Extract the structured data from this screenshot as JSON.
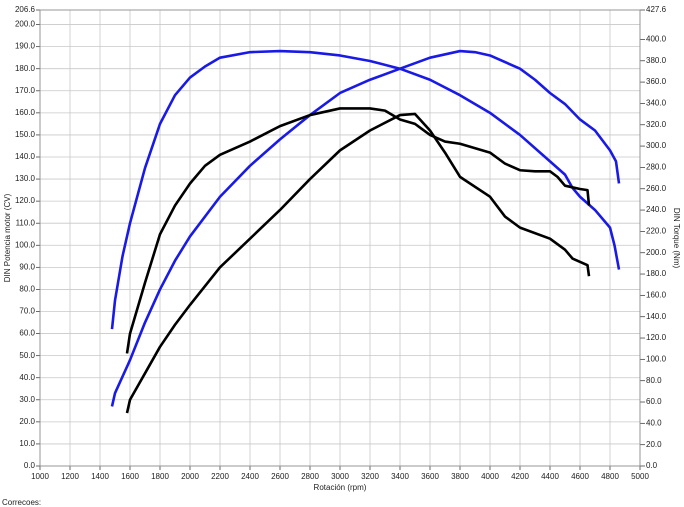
{
  "chart_data": {
    "type": "line",
    "xlabel": "Rotación (rpm)",
    "ylabel": "DIN Potencia motor (CV)",
    "y2label": "DIN Torque (Nm)",
    "footnote": "Correcoes:",
    "xlim": [
      1000,
      5000
    ],
    "xticks": [
      1000,
      1200,
      1400,
      1600,
      1800,
      2000,
      2200,
      2400,
      2600,
      2800,
      3000,
      3200,
      3400,
      3600,
      3800,
      4000,
      4200,
      4400,
      4600,
      4800,
      5000
    ],
    "ylim": [
      0,
      206.6
    ],
    "yticks": [
      {
        "value": 0,
        "label": "0.0"
      },
      {
        "value": 10,
        "label": "10.0"
      },
      {
        "value": 20,
        "label": "20.0"
      },
      {
        "value": 30,
        "label": "30.0"
      },
      {
        "value": 40,
        "label": "40.0"
      },
      {
        "value": 50,
        "label": "50.0"
      },
      {
        "value": 60,
        "label": "60.0"
      },
      {
        "value": 70,
        "label": "70.0"
      },
      {
        "value": 80,
        "label": "80.0"
      },
      {
        "value": 90,
        "label": "90.0"
      },
      {
        "value": 100,
        "label": "100.0"
      },
      {
        "value": 110,
        "label": "110.0"
      },
      {
        "value": 120,
        "label": "120.0"
      },
      {
        "value": 130,
        "label": "130.0"
      },
      {
        "value": 140,
        "label": "140.0"
      },
      {
        "value": 150,
        "label": "150.0"
      },
      {
        "value": 160,
        "label": "160.0"
      },
      {
        "value": 170,
        "label": "170.0"
      },
      {
        "value": 180,
        "label": "180.0"
      },
      {
        "value": 190,
        "label": "190.0"
      },
      {
        "value": 200,
        "label": "200.0"
      },
      206.6
    ],
    "y2lim": [
      0,
      427.6
    ],
    "y2ticks": [
      {
        "value": 0,
        "label": "0.0"
      },
      {
        "value": 20,
        "label": "20.0"
      },
      {
        "value": 40,
        "label": "40.0"
      },
      {
        "value": 60,
        "label": "60.0"
      },
      {
        "value": 80,
        "label": "80.0"
      },
      {
        "value": 100,
        "label": "100.0"
      },
      {
        "value": 120,
        "label": "120.0"
      },
      {
        "value": 140,
        "label": "140.0"
      },
      {
        "value": 160,
        "label": "160.0"
      },
      {
        "value": 180,
        "label": "180.0"
      },
      {
        "value": 200,
        "label": "200.0"
      },
      {
        "value": 220,
        "label": "220.0"
      },
      {
        "value": 240,
        "label": "240.0"
      },
      {
        "value": 260,
        "label": "260.0"
      },
      {
        "value": 280,
        "label": "280.0"
      },
      {
        "value": 300,
        "label": "300.0"
      },
      {
        "value": 320,
        "label": "320.0"
      },
      {
        "value": 340,
        "label": "340.0"
      },
      {
        "value": 360,
        "label": "360.0"
      },
      {
        "value": 380,
        "label": "380.0"
      },
      {
        "value": 400,
        "label": "400.0"
      },
      427.6
    ],
    "grid": true,
    "series": [
      {
        "color": "#1a1ae6",
        "x": [
          1480,
          1500,
          1550,
          1600,
          1700,
          1800,
          1900,
          2000,
          2100,
          2200,
          2400,
          2600,
          2800,
          3000,
          3200,
          3400,
          3600,
          3800,
          4000,
          4200,
          4400,
          4500,
          4550,
          4600,
          4700,
          4800,
          4830,
          4860
        ],
        "values": [
          62,
          75,
          95,
          110,
          135,
          155,
          168,
          176,
          181,
          185,
          187.5,
          188,
          187.5,
          186,
          183.5,
          180,
          175,
          168,
          160,
          150,
          138,
          132,
          126,
          122,
          116,
          108,
          100,
          89
        ]
      },
      {
        "color": "#1a1ae6",
        "x": [
          1480,
          1500,
          1600,
          1700,
          1800,
          1900,
          2000,
          2200,
          2400,
          2600,
          2800,
          3000,
          3200,
          3400,
          3600,
          3800,
          3900,
          4000,
          4200,
          4300,
          4400,
          4500,
          4600,
          4700,
          4800,
          4840,
          4860
        ],
        "values": [
          27,
          33,
          48,
          65,
          80,
          93,
          104,
          122,
          136,
          148,
          159,
          169,
          175,
          180,
          185,
          188,
          187.5,
          186,
          180,
          175,
          169,
          164,
          157,
          152,
          143,
          138,
          128
        ]
      },
      {
        "color": "#000000",
        "x": [
          1580,
          1600,
          1700,
          1800,
          1900,
          2000,
          2100,
          2200,
          2400,
          2600,
          2800,
          3000,
          3200,
          3300,
          3400,
          3500,
          3600,
          3700,
          3800,
          4000,
          4100,
          4200,
          4300,
          4400,
          4450,
          4500,
          4600,
          4650,
          4660
        ],
        "values": [
          51,
          60,
          83,
          105,
          118,
          128,
          136,
          141,
          147,
          154,
          159,
          162,
          162,
          161,
          157,
          155,
          150,
          147,
          146,
          142,
          137,
          134,
          133.5,
          133.5,
          131,
          127,
          125.5,
          125,
          118
        ]
      },
      {
        "color": "#000000",
        "x": [
          1580,
          1600,
          1700,
          1800,
          1900,
          2000,
          2200,
          2400,
          2600,
          2800,
          3000,
          3200,
          3400,
          3500,
          3600,
          3700,
          3800,
          4000,
          4100,
          4200,
          4400,
          4500,
          4550,
          4650,
          4660
        ],
        "values": [
          24,
          30,
          42,
          54,
          64,
          73,
          90,
          103,
          116,
          130,
          143,
          152,
          159,
          159.5,
          152,
          142,
          131,
          122,
          113,
          108,
          103,
          98,
          94,
          91,
          86
        ]
      }
    ]
  }
}
